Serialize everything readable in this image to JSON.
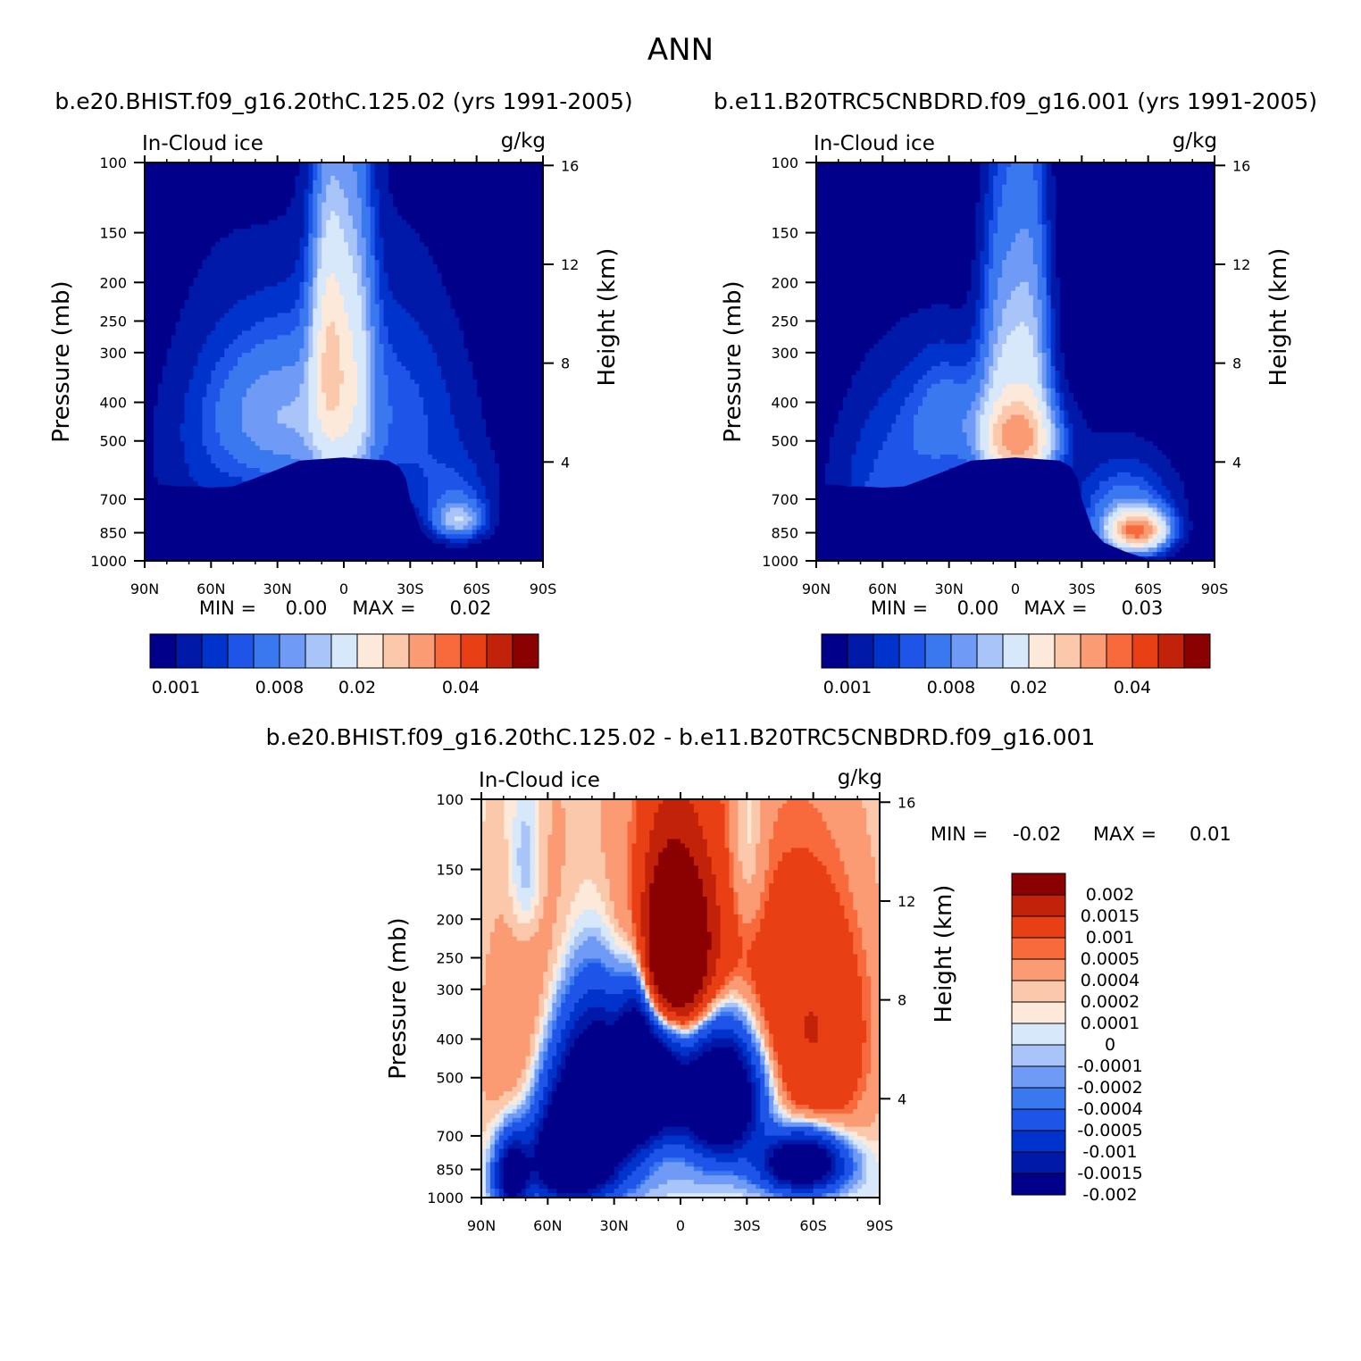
{
  "figure": {
    "title": "ANN"
  },
  "colors": {
    "seq": [
      "#00008b",
      "#0019a8",
      "#0033cc",
      "#1e55e8",
      "#3a78f0",
      "#6f9af5",
      "#a8c4f8",
      "#d8e8fb",
      "#fde9d9",
      "#fcc8ab",
      "#fb9b74",
      "#f86a3c",
      "#e93f14",
      "#c22209",
      "#8b0000"
    ],
    "div": [
      "#00008b",
      "#0019a8",
      "#0033cc",
      "#1e55e8",
      "#3a78f0",
      "#6f9af5",
      "#a8c4f8",
      "#d8e8fb",
      "#fde9d9",
      "#fcc8ab",
      "#fb9b74",
      "#f86a3c",
      "#e93f14",
      "#c22209",
      "#8b0000"
    ]
  },
  "chart_data": [
    {
      "id": "left",
      "type": "heatmap",
      "title": "b.e20.BHIST.f09_g16.20thC.125.02 (yrs 1991-2005)",
      "variable": "In-Cloud ice",
      "units": "g/kg",
      "xlabel": "",
      "ylabel": "Pressure (mb)",
      "ylabel_right": "Height (km)",
      "x_ticks": [
        "90N",
        "60N",
        "30N",
        "0",
        "30S",
        "60S",
        "90S"
      ],
      "x_values": [
        90,
        60,
        30,
        0,
        -30,
        -60,
        -90
      ],
      "y_ticks": [
        100,
        150,
        200,
        250,
        300,
        400,
        500,
        700,
        850,
        1000
      ],
      "y_right_ticks": [
        4,
        8,
        12,
        16
      ],
      "ylim": [
        100,
        1000
      ],
      "min_label": "MIN =",
      "min_value": "0.00",
      "max_label": "MAX =",
      "max_value": "0.02",
      "colorbar_labels": [
        "0.001",
        "0.008",
        "0.02",
        "0.04"
      ],
      "blobs": [
        {
          "lat": 0,
          "p": 560,
          "wlat": 60,
          "wp": 220,
          "amp": 0.0008
        },
        {
          "lat": 35,
          "p": 420,
          "wlat": 16,
          "wp": 110,
          "amp": 0.0045
        },
        {
          "lat": 15,
          "p": 450,
          "wlat": 14,
          "wp": 160,
          "amp": 0.0035
        },
        {
          "lat": 7,
          "p": 300,
          "wlat": 5,
          "wp": 130,
          "amp": 0.0125
        },
        {
          "lat": 2,
          "p": 380,
          "wlat": 8,
          "wp": 220,
          "amp": 0.006
        },
        {
          "lat": -5,
          "p": 320,
          "wlat": 6,
          "wp": 170,
          "amp": 0.007
        },
        {
          "lat": -22,
          "p": 420,
          "wlat": 22,
          "wp": 180,
          "amp": 0.003
        },
        {
          "lat": 55,
          "p": 500,
          "wlat": 22,
          "wp": 250,
          "amp": 0.002
        },
        {
          "lat": -52,
          "p": 790,
          "wlat": 7,
          "wp": 55,
          "amp": 0.008
        },
        {
          "lat": -50,
          "p": 700,
          "wlat": 12,
          "wp": 110,
          "amp": 0.0025
        }
      ]
    },
    {
      "id": "right",
      "type": "heatmap",
      "title": "b.e11.B20TRC5CNBDRD.f09_g16.001 (yrs 1991-2005)",
      "variable": "In-Cloud ice",
      "units": "g/kg",
      "xlabel": "",
      "ylabel": "Pressure (mb)",
      "ylabel_right": "Height (km)",
      "x_ticks": [
        "90N",
        "60N",
        "30N",
        "0",
        "30S",
        "60S",
        "90S"
      ],
      "x_values": [
        90,
        60,
        30,
        0,
        -30,
        -60,
        -90
      ],
      "y_ticks": [
        100,
        150,
        200,
        250,
        300,
        400,
        500,
        700,
        850,
        1000
      ],
      "y_right_ticks": [
        4,
        8,
        12,
        16
      ],
      "ylim": [
        100,
        1000
      ],
      "min_label": "MIN =",
      "min_value": "0.00",
      "max_label": "MAX =",
      "max_value": "0.03",
      "colorbar_labels": [
        "0.001",
        "0.008",
        "0.02",
        "0.04"
      ],
      "blobs": [
        {
          "lat": 0,
          "p": 560,
          "wlat": 60,
          "wp": 220,
          "amp": 0.0008
        },
        {
          "lat": 5,
          "p": 400,
          "wlat": 7,
          "wp": 200,
          "amp": 0.0095
        },
        {
          "lat": -7,
          "p": 380,
          "wlat": 6,
          "wp": 200,
          "amp": 0.009
        },
        {
          "lat": 3,
          "p": 490,
          "wlat": 10,
          "wp": 70,
          "amp": 0.01
        },
        {
          "lat": -5,
          "p": 500,
          "wlat": 10,
          "wp": 70,
          "amp": 0.01
        },
        {
          "lat": 30,
          "p": 430,
          "wlat": 12,
          "wp": 100,
          "amp": 0.004
        },
        {
          "lat": 55,
          "p": 650,
          "wlat": 18,
          "wp": 230,
          "amp": 0.003
        },
        {
          "lat": 62,
          "p": 810,
          "wlat": 6,
          "wp": 70,
          "amp": 0.007
        },
        {
          "lat": -55,
          "p": 840,
          "wlat": 8,
          "wp": 60,
          "amp": 0.03
        },
        {
          "lat": -50,
          "p": 760,
          "wlat": 14,
          "wp": 130,
          "amp": 0.005
        }
      ]
    },
    {
      "id": "diff",
      "type": "heatmap",
      "title": "b.e20.BHIST.f09_g16.20thC.125.02 - b.e11.B20TRC5CNBDRD.f09_g16.001",
      "variable": "In-Cloud ice",
      "units": "g/kg",
      "xlabel": "",
      "ylabel": "Pressure (mb)",
      "ylabel_right": "Height (km)",
      "x_ticks": [
        "90N",
        "60N",
        "30N",
        "0",
        "30S",
        "60S",
        "90S"
      ],
      "x_values": [
        90,
        60,
        30,
        0,
        -30,
        -60,
        -90
      ],
      "y_ticks": [
        100,
        150,
        200,
        250,
        300,
        400,
        500,
        700,
        850,
        1000
      ],
      "y_right_ticks": [
        4,
        8,
        12,
        16
      ],
      "ylim": [
        100,
        1000
      ],
      "min_label": "MIN =",
      "min_value": "-0.02",
      "max_label": "MAX =",
      "max_value": "0.01",
      "colorbar_labels": [
        "0.002",
        "0.0015",
        "0.001",
        "0.0005",
        "0.0004",
        "0.0002",
        "0.0001",
        "0",
        "-0.0001",
        "-0.0002",
        "-0.0004",
        "-0.0005",
        "-0.001",
        "-0.0015",
        "-0.002"
      ],
      "blobs": [
        {
          "lat": 0,
          "p": 380,
          "wlat": 42,
          "wp": 220,
          "amp": 0.0009
        },
        {
          "lat": 3,
          "p": 250,
          "wlat": 12,
          "wp": 90,
          "amp": 0.0025
        },
        {
          "lat": 60,
          "p": 500,
          "wlat": 20,
          "wp": 220,
          "amp": 0.0004
        },
        {
          "lat": -65,
          "p": 480,
          "wlat": 16,
          "wp": 230,
          "amp": 0.0005
        },
        {
          "lat": -60,
          "p": 330,
          "wlat": 20,
          "wp": 150,
          "amp": 0.00025
        },
        {
          "lat": 0,
          "p": 200,
          "wlat": 55,
          "wp": 120,
          "amp": 0.00012
        },
        {
          "lat": 38,
          "p": 560,
          "wlat": 14,
          "wp": 180,
          "amp": -0.005
        },
        {
          "lat": -18,
          "p": 560,
          "wlat": 12,
          "wp": 140,
          "amp": -0.005
        },
        {
          "lat": 12,
          "p": 520,
          "wlat": 10,
          "wp": 120,
          "amp": -0.004
        },
        {
          "lat": 20,
          "p": 450,
          "wlat": 5,
          "wp": 150,
          "amp": -0.002
        },
        {
          "lat": 50,
          "p": 800,
          "wlat": 12,
          "wp": 140,
          "amp": -0.004
        },
        {
          "lat": -55,
          "p": 820,
          "wlat": 12,
          "wp": 90,
          "amp": -0.004
        },
        {
          "lat": 76,
          "p": 880,
          "wlat": 5,
          "wp": 120,
          "amp": -0.003
        },
        {
          "lat": 15,
          "p": 900,
          "wlat": 30,
          "wp": 90,
          "amp": -0.00015
        },
        {
          "lat": 70,
          "p": 150,
          "wlat": 5,
          "wp": 50,
          "amp": -0.0004
        },
        {
          "lat": -30,
          "p": 140,
          "wlat": 6,
          "wp": 60,
          "amp": -0.0004
        }
      ]
    }
  ]
}
